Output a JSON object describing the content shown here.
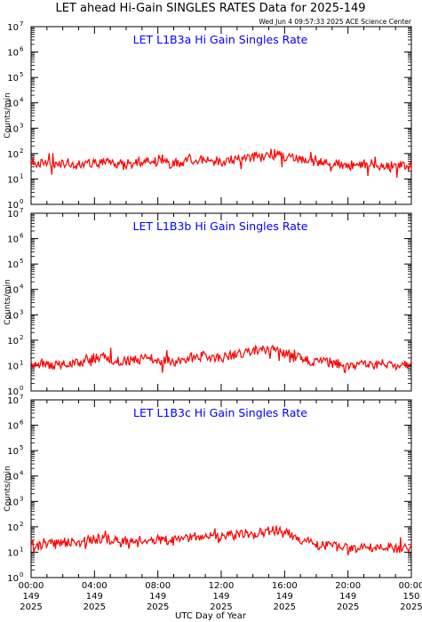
{
  "title": "LET ahead Hi-Gain SINGLES RATES Data for 2025-149",
  "timestamp": "Wed Jun  4 09:57:33 2025 ACE Science Center",
  "xlabel": "UTC Day of Year",
  "ylabel": "Counts/min",
  "x_ticks": [
    {
      "time": "00:00",
      "doy": "149",
      "year": "2025"
    },
    {
      "time": "04:00",
      "doy": "149",
      "year": "2025"
    },
    {
      "time": "08:00",
      "doy": "149",
      "year": "2025"
    },
    {
      "time": "12:00",
      "doy": "149",
      "year": "2025"
    },
    {
      "time": "16:00",
      "doy": "149",
      "year": "2025"
    },
    {
      "time": "20:00",
      "doy": "149",
      "year": "2025"
    },
    {
      "time": "00:00",
      "doy": "150",
      "year": "2025"
    }
  ],
  "y_ticks": [
    "0",
    "1",
    "2",
    "3",
    "4",
    "5",
    "6",
    "7"
  ],
  "colors": {
    "series": "#ff0000",
    "panel_title": "#0000ff",
    "axes": "#000000",
    "background": "#ffffff"
  },
  "chart_data": [
    {
      "type": "line",
      "title": "LET L1B3a Hi Gain Singles Rate",
      "xlabel": "",
      "ylabel": "Counts/min",
      "y_scale": "log",
      "ylim": [
        1,
        10000000
      ],
      "xlim": [
        0,
        24
      ],
      "x_units": "hours UTC, day 149",
      "series": [
        {
          "x": [
            0,
            0.5,
            1,
            1.5,
            2,
            2.5,
            3,
            3.5,
            4,
            4.5,
            5,
            5.5,
            6,
            6.5,
            7,
            7.5,
            8,
            8.5,
            9,
            9.5,
            10,
            10.5,
            11,
            11.5,
            12,
            12.5,
            13,
            13.5,
            14,
            14.5,
            15,
            15.5,
            16,
            16.5,
            17,
            17.5,
            18,
            18.5,
            19,
            19.5,
            20,
            20.5,
            21,
            21.5,
            22,
            22.5,
            23,
            23.5,
            24
          ],
          "values": [
            50,
            40,
            42,
            38,
            45,
            40,
            36,
            42,
            45,
            50,
            44,
            40,
            38,
            42,
            48,
            52,
            46,
            42,
            40,
            45,
            55,
            60,
            58,
            50,
            48,
            55,
            62,
            70,
            75,
            72,
            80,
            85,
            75,
            65,
            55,
            48,
            42,
            45,
            40,
            38,
            35,
            36,
            38,
            40,
            34,
            32,
            36,
            38,
            35
          ]
        }
      ]
    },
    {
      "type": "line",
      "title": "LET L1B3b Hi Gain Singles Rate",
      "xlabel": "",
      "ylabel": "Counts/min",
      "y_scale": "log",
      "ylim": [
        1,
        10000000
      ],
      "xlim": [
        0,
        24
      ],
      "x_units": "hours UTC, day 149",
      "series": [
        {
          "x": [
            0,
            0.5,
            1,
            1.5,
            2,
            2.5,
            3,
            3.5,
            4,
            4.5,
            5,
            5.5,
            6,
            6.5,
            7,
            7.5,
            8,
            8.5,
            9,
            9.5,
            10,
            10.5,
            11,
            11.5,
            12,
            12.5,
            13,
            13.5,
            14,
            14.5,
            15,
            15.5,
            16,
            16.5,
            17,
            17.5,
            18,
            18.5,
            19,
            19.5,
            20,
            20.5,
            21,
            21.5,
            22,
            22.5,
            23,
            23.5,
            24
          ],
          "values": [
            10,
            12,
            11,
            10,
            12,
            14,
            12,
            18,
            20,
            22,
            18,
            16,
            14,
            16,
            18,
            20,
            18,
            15,
            14,
            16,
            20,
            22,
            24,
            22,
            20,
            24,
            28,
            32,
            38,
            40,
            42,
            38,
            30,
            24,
            20,
            16,
            14,
            15,
            13,
            12,
            10,
            11,
            12,
            10,
            11,
            12,
            10,
            11,
            12
          ]
        }
      ]
    },
    {
      "type": "line",
      "title": "LET L1B3c Hi Gain Singles Rate",
      "xlabel": "UTC Day of Year",
      "ylabel": "Counts/min",
      "y_scale": "log",
      "ylim": [
        1,
        10000000
      ],
      "xlim": [
        0,
        24
      ],
      "x_units": "hours UTC, day 149",
      "series": [
        {
          "x": [
            0,
            0.5,
            1,
            1.5,
            2,
            2.5,
            3,
            3.5,
            4,
            4.5,
            5,
            5.5,
            6,
            6.5,
            7,
            7.5,
            8,
            8.5,
            9,
            9.5,
            10,
            10.5,
            11,
            11.5,
            12,
            12.5,
            13,
            13.5,
            14,
            14.5,
            15,
            15.5,
            16,
            16.5,
            17,
            17.5,
            18,
            18.5,
            19,
            19.5,
            20,
            20.5,
            21,
            21.5,
            22,
            22.5,
            23,
            23.5,
            24
          ],
          "values": [
            20,
            18,
            22,
            20,
            24,
            26,
            24,
            30,
            32,
            34,
            30,
            28,
            26,
            28,
            32,
            34,
            32,
            30,
            28,
            32,
            36,
            40,
            42,
            40,
            38,
            44,
            50,
            55,
            60,
            58,
            70,
            75,
            62,
            45,
            32,
            25,
            20,
            18,
            17,
            16,
            14,
            15,
            16,
            14,
            15,
            16,
            14,
            15,
            16
          ]
        }
      ]
    }
  ]
}
